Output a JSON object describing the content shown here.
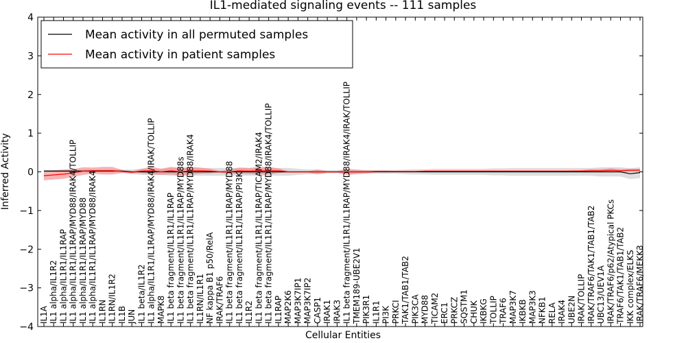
{
  "chart_data": {
    "type": "line",
    "title": "IL1-mediated signaling events -- 111 samples",
    "xlabel": "Cellular Entities",
    "ylabel": "Inferred Activity",
    "ylim": [
      -4,
      4
    ],
    "yticks": [
      4,
      3,
      2,
      1,
      0,
      -1,
      -2,
      -3,
      -4
    ],
    "ytick_labels": [
      "4",
      "3",
      "2",
      "1",
      "0",
      "−1",
      "−2",
      "−3",
      "−4"
    ],
    "grid": false,
    "legend_position": "top-left",
    "categories": [
      "IL1A",
      "IL1 alpha/IL1R2",
      "IL1 alpha/IL1R1/IL1RAP",
      "IL1 alpha/IL1R1/IL1RAP/MYD88/IRAK4/TOLLIP",
      "IL1 alpha/IL1R1/IL1RAP/MYD88",
      "IL1 alpha/IL1R1/IL1RAP/MYD88/IRAK4",
      "IL1RN",
      "IL1RN/IL1R2",
      "IL1B",
      "JUN",
      "IL1 beta/IL1R2",
      "IL1 alpha/IL1R1/IL1RAP/MYD88/IRAK4/IRAK/TOLLIP",
      "MAPK8",
      "IL1 beta fragment/IL1R1/IL1RAP",
      "IL1 beta fragment/IL1R1/IL1RAP/MYD88s",
      "IL1 beta fragment/IL1R1/IL1RAP/MYD88/IRAK4",
      "IL1RN/IL1R1",
      "NF kappa B1 p50/RelA",
      "IRAK/TRAF6",
      "IL1 beta fragment/IL1R1/IL1RAP/MYD88",
      "IL1 beta fragment/IL1R1/IL1RAP/PI3K",
      "IL1R2",
      "IL1 beta fragment/IL1R1/IL1RAP/TICAM2/IRAK4",
      "IL1 beta fragment/IL1R1/IL1RAP/MYD88/IRAK4/TOLLIP",
      "IL1RAP",
      "MAP2K6",
      "MAP3K7IP1",
      "MAP3K7IP2",
      "CASP1",
      "IRAK1",
      "IRAK3",
      "IL1 beta fragment/IL1R1/IL1RAP/MYD88/IRAK4/IRAK/TOLLIP",
      "TMEM189-UBE2V1",
      "PIK3R1",
      "IL1R1",
      "PI3K",
      "PRKCI",
      "TAK1/TAB1/TAB2",
      "PIK3CA",
      "MYD88",
      "TICAM2",
      "ERC1",
      "PRKCZ",
      "SQSTM1",
      "CHUK",
      "IKBKG",
      "TOLLIP",
      "TRAF6",
      "MAP3K7",
      "IKBKB",
      "MAP3K3",
      "NFKB1",
      "RELA",
      "IRAK4",
      "UBE2N",
      "IRAK/TOLLIP",
      "IRAK/TRAF6/TAK1/TAB1/TAB2",
      "UBC13/UEV1A",
      "IRAK/TRAF6/p62/Atypical PKCs",
      "TRAF6/TAK1/TAB1/TAB2",
      "IKK complex/ELKS",
      "IRAK/TRAF6/MEKK3"
    ],
    "series": [
      {
        "name": "Mean activity in all permuted samples",
        "color": "#000000",
        "band_color": "#cccccc",
        "values": [
          0.02,
          0.02,
          0.02,
          0.02,
          0.02,
          0.02,
          0.02,
          0.02,
          0.02,
          0.0,
          0.0,
          0.0,
          0.0,
          0.0,
          0.0,
          0.0,
          0.0,
          0.0,
          0.0,
          0.0,
          0.0,
          0.0,
          0.0,
          0.0,
          0.0,
          0.0,
          0.0,
          0.0,
          0.0,
          0.0,
          0.0,
          0.0,
          0.0,
          0.0,
          0.0,
          0.0,
          0.0,
          0.0,
          0.0,
          0.0,
          0.0,
          0.0,
          0.0,
          0.0,
          0.0,
          0.0,
          0.0,
          0.0,
          0.0,
          0.0,
          0.0,
          0.0,
          0.0,
          0.0,
          0.0,
          0.0,
          0.0,
          0.0,
          0.0,
          0.0,
          -0.05,
          -0.02
        ],
        "spread": [
          0.03,
          0.03,
          0.03,
          0.04,
          0.04,
          0.04,
          0.04,
          0.04,
          0.04,
          0.06,
          0.08,
          0.08,
          0.08,
          0.1,
          0.1,
          0.1,
          0.1,
          0.1,
          0.1,
          0.1,
          0.1,
          0.1,
          0.1,
          0.1,
          0.1,
          0.1,
          0.08,
          0.06,
          0.06,
          0.04,
          0.04,
          0.05,
          0.04,
          0.05,
          0.05,
          0.05,
          0.05,
          0.06,
          0.07,
          0.07,
          0.08,
          0.08,
          0.08,
          0.08,
          0.08,
          0.08,
          0.09,
          0.09,
          0.1,
          0.1,
          0.1,
          0.1,
          0.1,
          0.1,
          0.1,
          0.1,
          0.1,
          0.12,
          0.12,
          0.12,
          0.14,
          0.14
        ]
      },
      {
        "name": "Mean activity in patient samples",
        "color": "#ff0000",
        "band_color": "#f08080",
        "values": [
          -0.1,
          -0.08,
          -0.06,
          -0.03,
          0.02,
          0.03,
          0.03,
          0.03,
          0.01,
          -0.01,
          0.02,
          0.03,
          0.0,
          0.03,
          0.0,
          0.03,
          0.03,
          0.02,
          0.0,
          0.0,
          0.03,
          0.02,
          0.03,
          0.03,
          0.03,
          0.0,
          0.0,
          0.0,
          0.0,
          0.0,
          0.0,
          0.0,
          0.0,
          0.0,
          0.01,
          0.01,
          0.01,
          0.01,
          0.01,
          0.02,
          0.02,
          0.02,
          0.02,
          0.02,
          0.02,
          0.02,
          0.02,
          0.02,
          0.02,
          0.02,
          0.02,
          0.02,
          0.02,
          0.02,
          0.02,
          0.02,
          0.03,
          0.03,
          0.04,
          0.03,
          0.04,
          0.04
        ],
        "spread": [
          0.12,
          0.12,
          0.12,
          0.1,
          0.1,
          0.08,
          0.1,
          0.1,
          0.04,
          0.02,
          0.06,
          0.1,
          0.08,
          0.1,
          0.1,
          0.1,
          0.08,
          0.06,
          0.02,
          0.06,
          0.08,
          0.08,
          0.1,
          0.1,
          0.06,
          0.02,
          0.02,
          0.02,
          0.06,
          0.02,
          0.02,
          0.08,
          0.06,
          0.04,
          0.02,
          0.02,
          0.01,
          0.01,
          0.01,
          0.01,
          0.01,
          0.01,
          0.01,
          0.01,
          0.01,
          0.01,
          0.01,
          0.01,
          0.01,
          0.01,
          0.01,
          0.01,
          0.01,
          0.01,
          0.02,
          0.03,
          0.04,
          0.04,
          0.05,
          0.04,
          0.04,
          0.04
        ]
      }
    ]
  }
}
